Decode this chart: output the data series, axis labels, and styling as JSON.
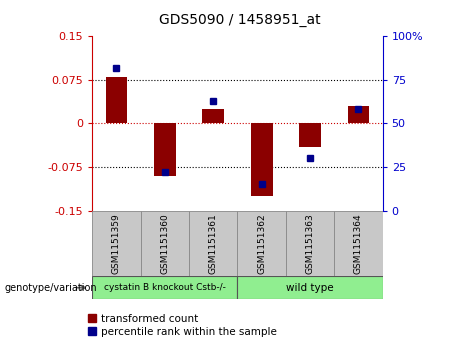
{
  "title": "GDS5090 / 1458951_at",
  "samples": [
    "GSM1151359",
    "GSM1151360",
    "GSM1151361",
    "GSM1151362",
    "GSM1151363",
    "GSM1151364"
  ],
  "transformed_count": [
    0.08,
    -0.09,
    0.025,
    -0.125,
    -0.04,
    0.03
  ],
  "percentile_rank": [
    82,
    22,
    63,
    15,
    30,
    58
  ],
  "group_colors": [
    "#90ee90",
    "#90ee90"
  ],
  "sample_bg_color": "#c8c8c8",
  "ylim_left": [
    -0.15,
    0.15
  ],
  "ylim_right": [
    0,
    100
  ],
  "yticks_left": [
    -0.15,
    -0.075,
    0,
    0.075,
    0.15
  ],
  "yticks_right": [
    0,
    25,
    50,
    75,
    100
  ],
  "bar_color": "#8b0000",
  "dot_color": "#00008b",
  "left_axis_color": "#cc0000",
  "right_axis_color": "#0000cc",
  "genotype_label": "genotype/variation",
  "group1_label": "cystatin B knockout Cstb-/-",
  "group2_label": "wild type",
  "legend_red": "transformed count",
  "legend_blue": "percentile rank within the sample"
}
